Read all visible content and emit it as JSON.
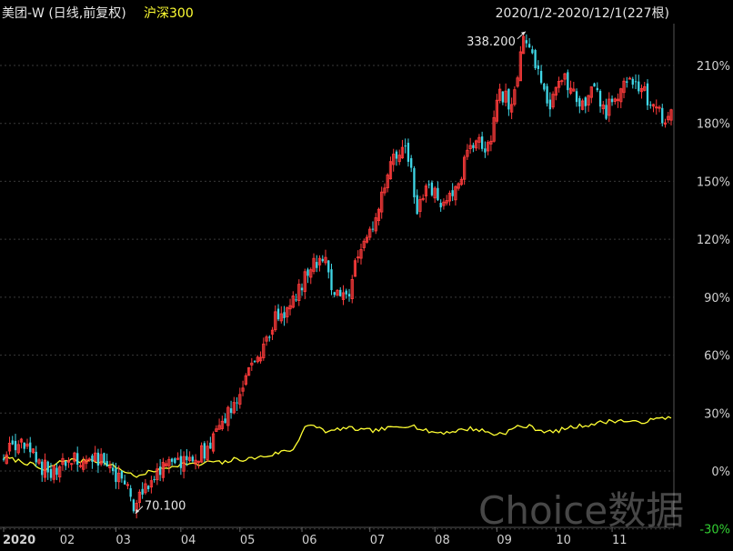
{
  "header": {
    "stock_title": "美团-W (日线,前复权)",
    "benchmark_name": "沪深300",
    "date_range": "2020/1/2-2020/12/1(227根)"
  },
  "watermark": "Choice数据",
  "colors": {
    "background": "#000000",
    "up": "#ff3b3b",
    "down": "#3fd6e6",
    "benchmark": "#ffff33",
    "grid": "#3a3a3a",
    "axis_text": "#d0d0d0",
    "negative_text": "#33d033"
  },
  "chart_data": {
    "type": "line",
    "title": "",
    "x_tick_labels": [
      "2020",
      "02",
      "03",
      "04",
      "05",
      "06",
      "07",
      "08",
      "09",
      "10",
      "11"
    ],
    "y_tick_labels": [
      "210%",
      "180%",
      "150%",
      "120%",
      "90%",
      "60%",
      "30%",
      "0%",
      "-30%"
    ],
    "y_ticks": [
      210,
      180,
      150,
      120,
      90,
      60,
      30,
      0,
      -30
    ],
    "ylim": [
      -30,
      228
    ],
    "annotations": [
      {
        "label": "338.200",
        "x": 177,
        "y": 228
      },
      {
        "label": "70.100",
        "x": 44,
        "y": -22
      }
    ],
    "series": [
      {
        "name": "美团-W",
        "style": "candlestick",
        "x": [
          0,
          4,
          8,
          12,
          16,
          20,
          24,
          28,
          32,
          36,
          40,
          44,
          48,
          52,
          56,
          60,
          64,
          68,
          72,
          76,
          80,
          84,
          88,
          92,
          96,
          100,
          104,
          108,
          112,
          116,
          120,
          124,
          128,
          132,
          136,
          140,
          144,
          148,
          152,
          156,
          160,
          164,
          168,
          172,
          176,
          180,
          184,
          188,
          192,
          196,
          200,
          204,
          208,
          212,
          216,
          220,
          224,
          226
        ],
        "values": [
          8,
          14,
          11,
          3,
          0,
          3,
          5,
          6,
          5,
          2,
          -5,
          -17,
          -8,
          -1,
          3,
          4,
          5,
          10,
          18,
          30,
          42,
          54,
          66,
          78,
          84,
          94,
          106,
          112,
          92,
          88,
          111,
          122,
          140,
          162,
          170,
          137,
          146,
          138,
          143,
          159,
          172,
          166,
          197,
          188,
          222,
          212,
          187,
          205,
          200,
          191,
          198,
          186,
          195,
          205,
          199,
          188,
          182,
          184
        ]
      },
      {
        "name": "沪深300",
        "style": "line",
        "x": [
          0,
          6,
          10,
          14,
          18,
          22,
          26,
          30,
          34,
          38,
          42,
          46,
          50,
          54,
          58,
          62,
          66,
          70,
          74,
          78,
          82,
          86,
          90,
          94,
          98,
          102,
          106,
          110,
          114,
          118,
          122,
          126,
          130,
          134,
          138,
          142,
          146,
          150,
          154,
          158,
          162,
          166,
          170,
          174,
          178,
          182,
          186,
          190,
          194,
          198,
          202,
          206,
          210,
          214,
          218,
          222,
          226
        ],
        "values": [
          7,
          5,
          3,
          0,
          4,
          6,
          5,
          6,
          4,
          2,
          -1,
          -3,
          0,
          1,
          3,
          4,
          3,
          5,
          4,
          6,
          6,
          7,
          8,
          10,
          11,
          23,
          23,
          20,
          22,
          22,
          21,
          21,
          22,
          23,
          24,
          21,
          20,
          20,
          21,
          22,
          21,
          19,
          20,
          23,
          23,
          21,
          20,
          22,
          23,
          24,
          25,
          26,
          26,
          25,
          26,
          27,
          28
        ]
      }
    ]
  }
}
